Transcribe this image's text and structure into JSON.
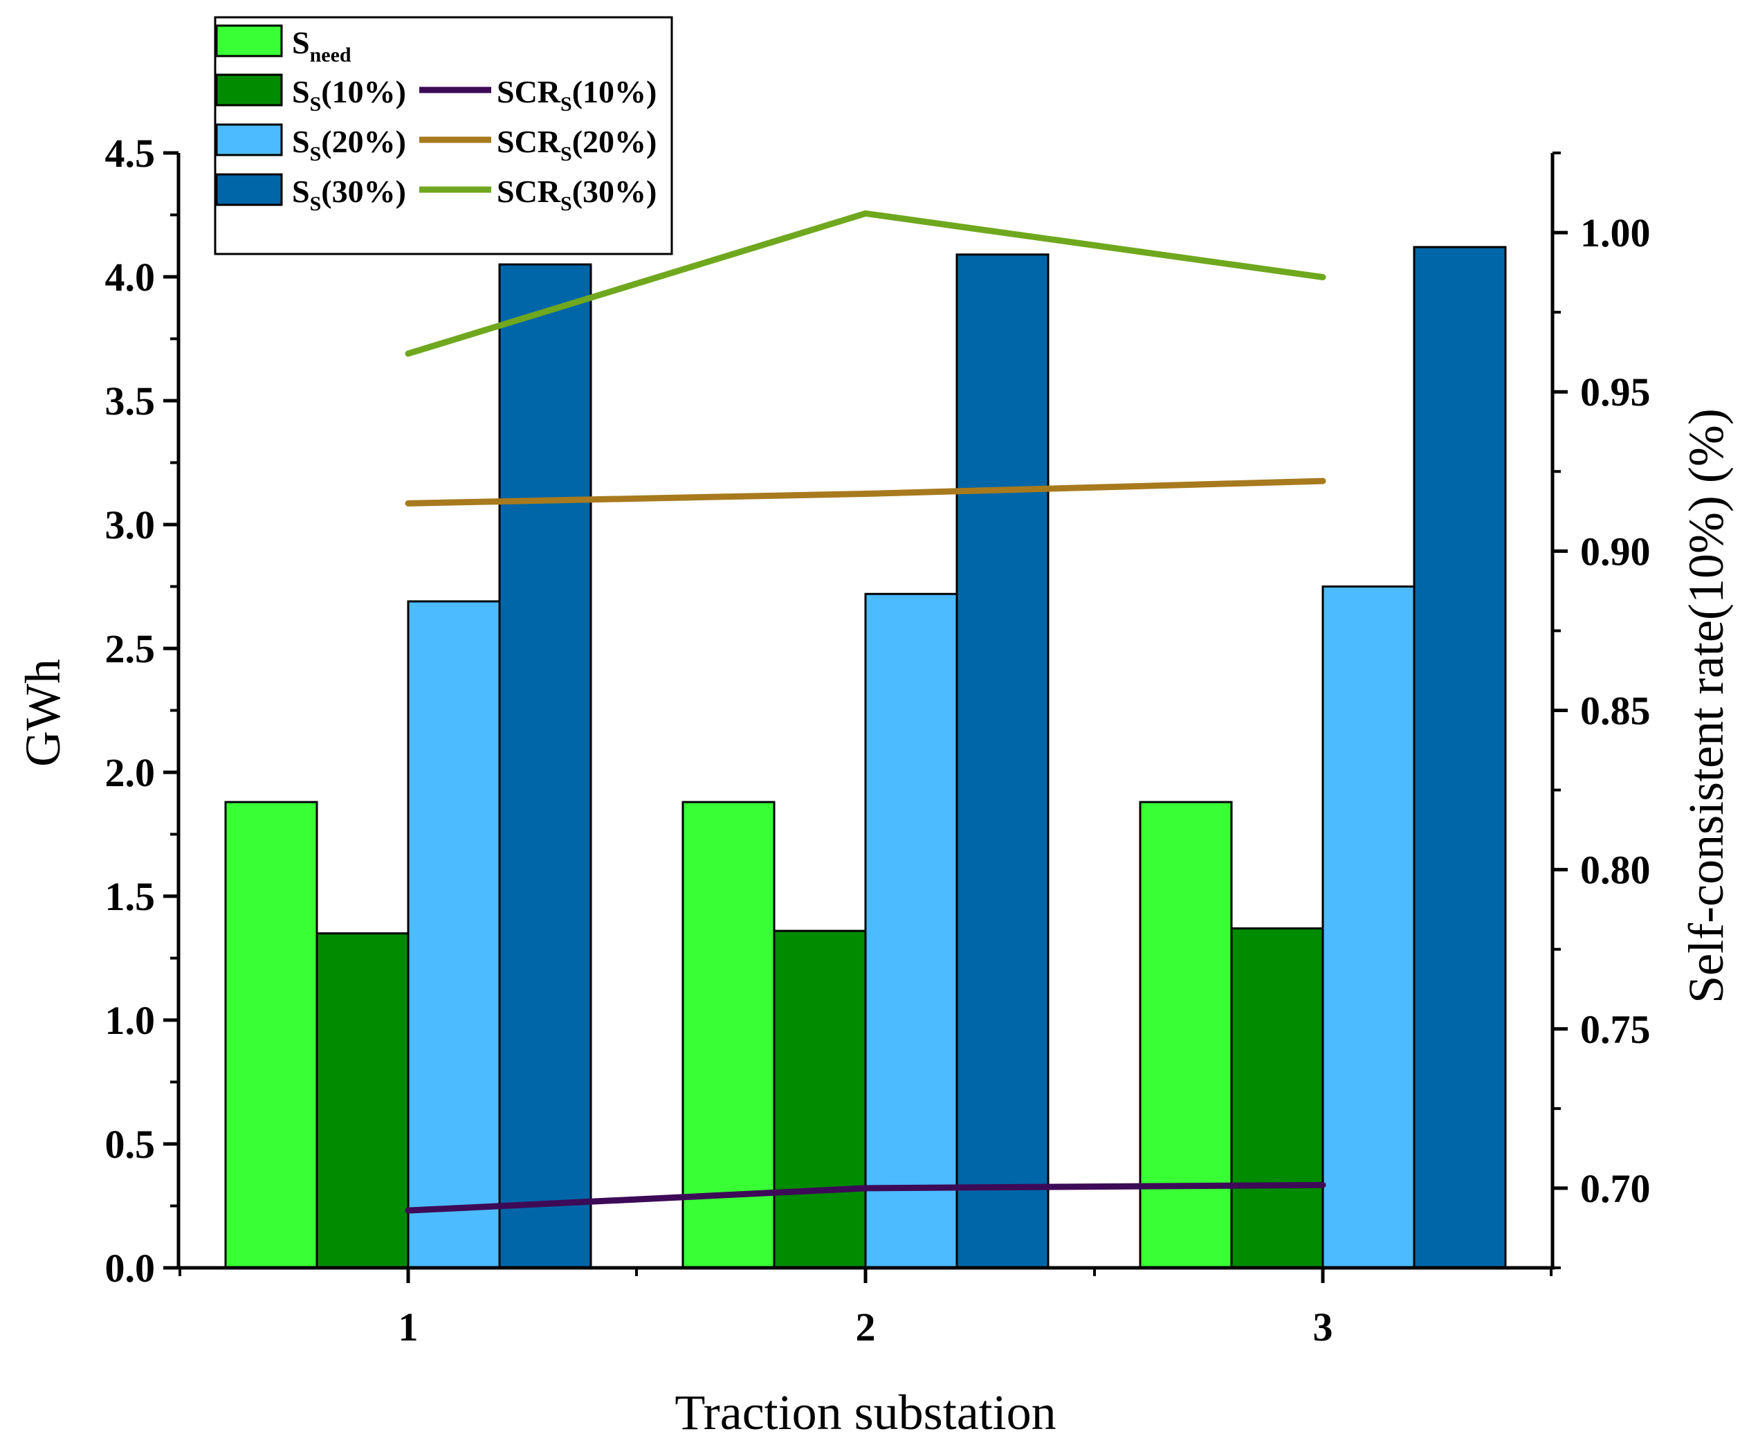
{
  "chart_data": {
    "type": "bar",
    "xlabel": "Traction substation",
    "ylabel": "GWh",
    "y2label": "Self-consistent rate(10%) (%)",
    "categories": [
      "1",
      "2",
      "3"
    ],
    "ylim": [
      0,
      4.5
    ],
    "yticks": [
      "0.0",
      "0.5",
      "1.0",
      "1.5",
      "2.0",
      "2.5",
      "3.0",
      "3.5",
      "4.0",
      "4.5"
    ],
    "y2lim": [
      0.675,
      1.025
    ],
    "y2ticks": [
      "0.70",
      "0.75",
      "0.80",
      "0.85",
      "0.90",
      "0.95",
      "1.00"
    ],
    "bar_series": [
      {
        "key": "sneed",
        "color": "#39FF35",
        "values": [
          1.88,
          1.88,
          1.88
        ]
      },
      {
        "key": "ss10",
        "color": "#008B00",
        "values": [
          1.35,
          1.36,
          1.37
        ]
      },
      {
        "key": "ss20",
        "color": "#4DBBFF",
        "values": [
          2.69,
          2.72,
          2.75
        ]
      },
      {
        "key": "ss30",
        "color": "#0066A8",
        "values": [
          4.05,
          4.09,
          4.12
        ]
      }
    ],
    "line_series": [
      {
        "key": "scr10",
        "color": "#3D0A57",
        "values": [
          0.693,
          0.7,
          0.701
        ]
      },
      {
        "key": "scr20",
        "color": "#A87A1E",
        "values": [
          0.915,
          0.918,
          0.922
        ]
      },
      {
        "key": "scr30",
        "color": "#6FA81E",
        "values": [
          0.962,
          1.006,
          0.986
        ]
      }
    ],
    "legend": {
      "position": "top-left",
      "sneed": {
        "main": "S",
        "sub": "need",
        "suffix": ""
      },
      "ss10": {
        "main": "S",
        "sub": "S",
        "suffix": "(10%)"
      },
      "ss20": {
        "main": "S",
        "sub": "S",
        "suffix": "(20%)"
      },
      "ss30": {
        "main": "S",
        "sub": "S",
        "suffix": "(30%)"
      },
      "scr10": {
        "main": "SCR",
        "sub": "S",
        "suffix": "(10%)"
      },
      "scr20": {
        "main": "SCR",
        "sub": "S",
        "suffix": "(20%)"
      },
      "scr30": {
        "main": "SCR",
        "sub": "S",
        "suffix": "(30%)"
      }
    }
  }
}
